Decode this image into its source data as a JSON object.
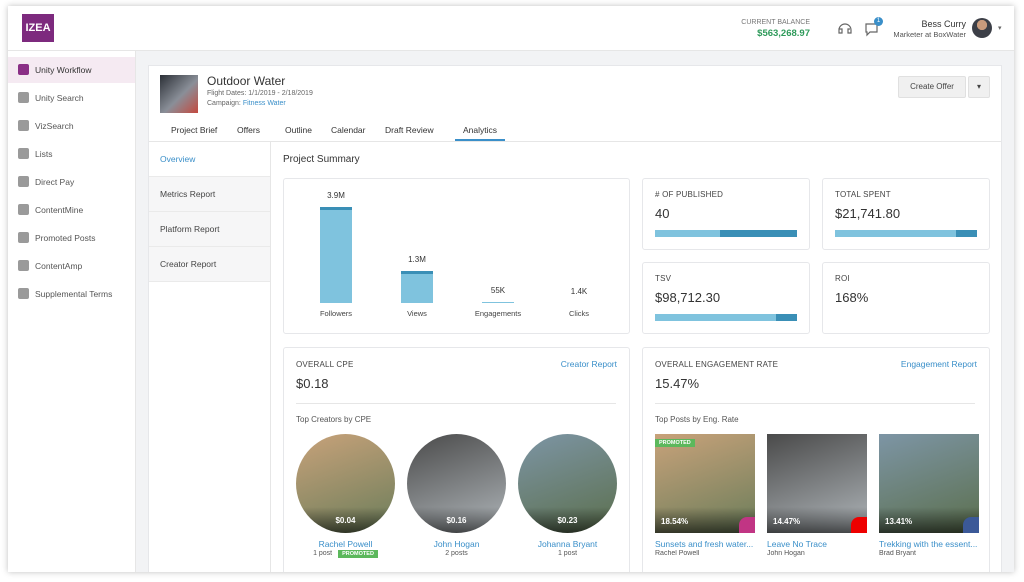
{
  "header": {
    "logo": "IZEA",
    "balance_label": "CURRENT BALANCE",
    "balance": "$563,268.97",
    "notification_count": "1",
    "user_name": "Bess Curry",
    "user_role": "Marketer at BoxWater"
  },
  "sidebar": [
    "Unity Workflow",
    "Unity Search",
    "VizSearch",
    "Lists",
    "Direct Pay",
    "ContentMine",
    "Promoted Posts",
    "ContentAmp",
    "Supplemental Terms"
  ],
  "project": {
    "title": "Outdoor Water",
    "flight_dates": "Flight Dates: 1/1/2019 - 2/18/2019",
    "campaign_label": "Campaign:",
    "campaign": "Fitness Water",
    "action": "Create Offer"
  },
  "tabs": [
    "Project Brief",
    "Offers",
    "Outline",
    "Calendar",
    "Draft Review",
    "Analytics"
  ],
  "subnav": [
    "Overview",
    "Metrics Report",
    "Platform Report",
    "Creator Report"
  ],
  "summary": {
    "title": "Project Summary",
    "chart": {
      "type": "bar",
      "categories": [
        "Followers",
        "Views",
        "Engagements",
        "Clicks"
      ],
      "values": [
        3900000,
        1300000,
        55000,
        1400
      ],
      "value_labels": [
        "3.9M",
        "1.3M",
        "55K",
        "1.4K"
      ]
    },
    "stats": [
      {
        "label": "# OF PUBLISHED",
        "value": "40"
      },
      {
        "label": "TOTAL SPENT",
        "value": "$21,741.80"
      },
      {
        "label": "TSV",
        "value": "$98,712.30"
      },
      {
        "label": "ROI",
        "value": "168%"
      }
    ]
  },
  "cpe": {
    "label": "OVERALL CPE",
    "value": "$0.18",
    "link": "Creator Report",
    "subtitle": "Top Creators by CPE",
    "creators": [
      {
        "cpe": "$0.04",
        "name": "Rachel Powell",
        "posts": "1 post",
        "badge": "PROMOTED"
      },
      {
        "cpe": "$0.16",
        "name": "John Hogan",
        "posts": "2 posts"
      },
      {
        "cpe": "$0.23",
        "name": "Johanna Bryant",
        "posts": "1 post"
      }
    ]
  },
  "engagement": {
    "label": "OVERALL ENGAGEMENT RATE",
    "value": "15.47%",
    "link": "Engagement Report",
    "subtitle": "Top Posts by Eng. Rate",
    "posts": [
      {
        "rate": "18.54%",
        "title": "Sunsets and fresh water...",
        "author": "Rachel Powell",
        "badge": "PROMOTED"
      },
      {
        "rate": "14.47%",
        "title": "Leave No Trace",
        "author": "John Hogan"
      },
      {
        "rate": "13.41%",
        "title": "Trekking with the essent...",
        "author": "Brad Bryant"
      }
    ]
  }
}
